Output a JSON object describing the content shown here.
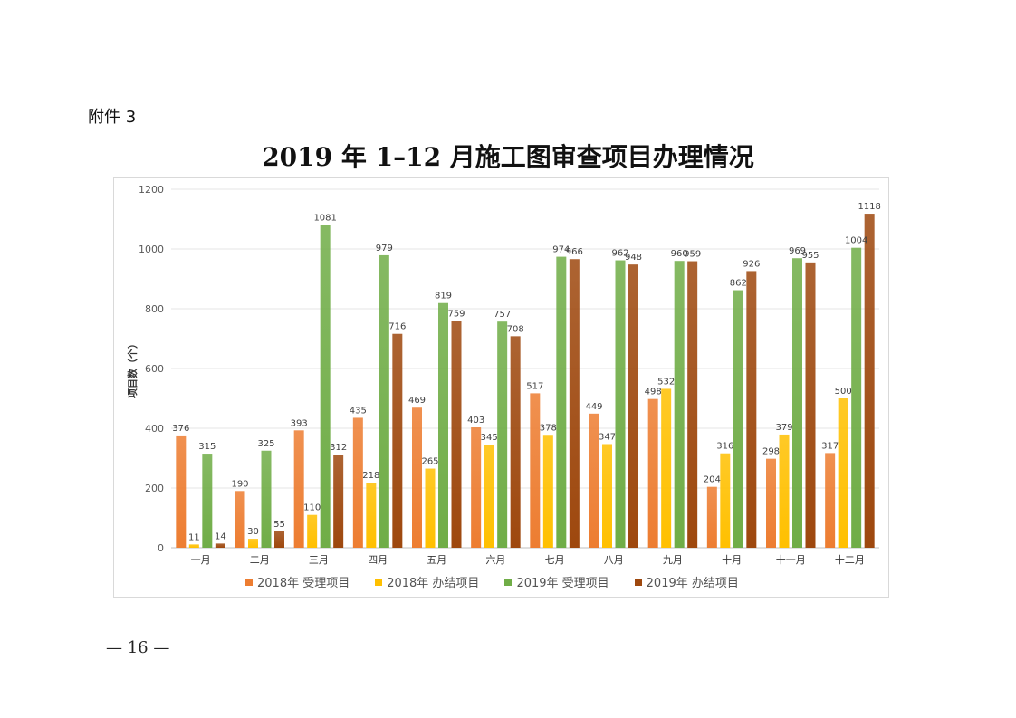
{
  "attachment_label": "附件 3",
  "document_title": "2019 年 1–12 月施工图审查项目办理情况",
  "page_number": "— 16 —",
  "chart_data": {
    "type": "bar",
    "title": "",
    "xlabel": "",
    "ylabel": "项目数（个）",
    "ylim": [
      0,
      1200
    ],
    "yticks": [
      0,
      200,
      400,
      600,
      800,
      1000,
      1200
    ],
    "grid": true,
    "legend_position": "bottom",
    "categories": [
      "一月",
      "二月",
      "三月",
      "四月",
      "五月",
      "六月",
      "七月",
      "八月",
      "九月",
      "十月",
      "十一月",
      "十二月"
    ],
    "series": [
      {
        "name": "2018年 受理项目",
        "color": "#ed7d31",
        "values": [
          376,
          190,
          393,
          435,
          469,
          403,
          517,
          449,
          498,
          204,
          298,
          317
        ]
      },
      {
        "name": "2018年 办结项目",
        "color": "#ffc000",
        "values": [
          11,
          30,
          110,
          218,
          265,
          345,
          378,
          347,
          532,
          316,
          379,
          500
        ]
      },
      {
        "name": "2019年 受理项目",
        "color": "#70ad47",
        "values": [
          315,
          325,
          1081,
          979,
          819,
          757,
          974,
          962,
          960,
          862,
          969,
          1004
        ]
      },
      {
        "name": "2019年 办结项目",
        "color": "#9e480e",
        "values": [
          14,
          55,
          312,
          716,
          759,
          708,
          966,
          948,
          959,
          926,
          955,
          1118
        ]
      }
    ]
  }
}
